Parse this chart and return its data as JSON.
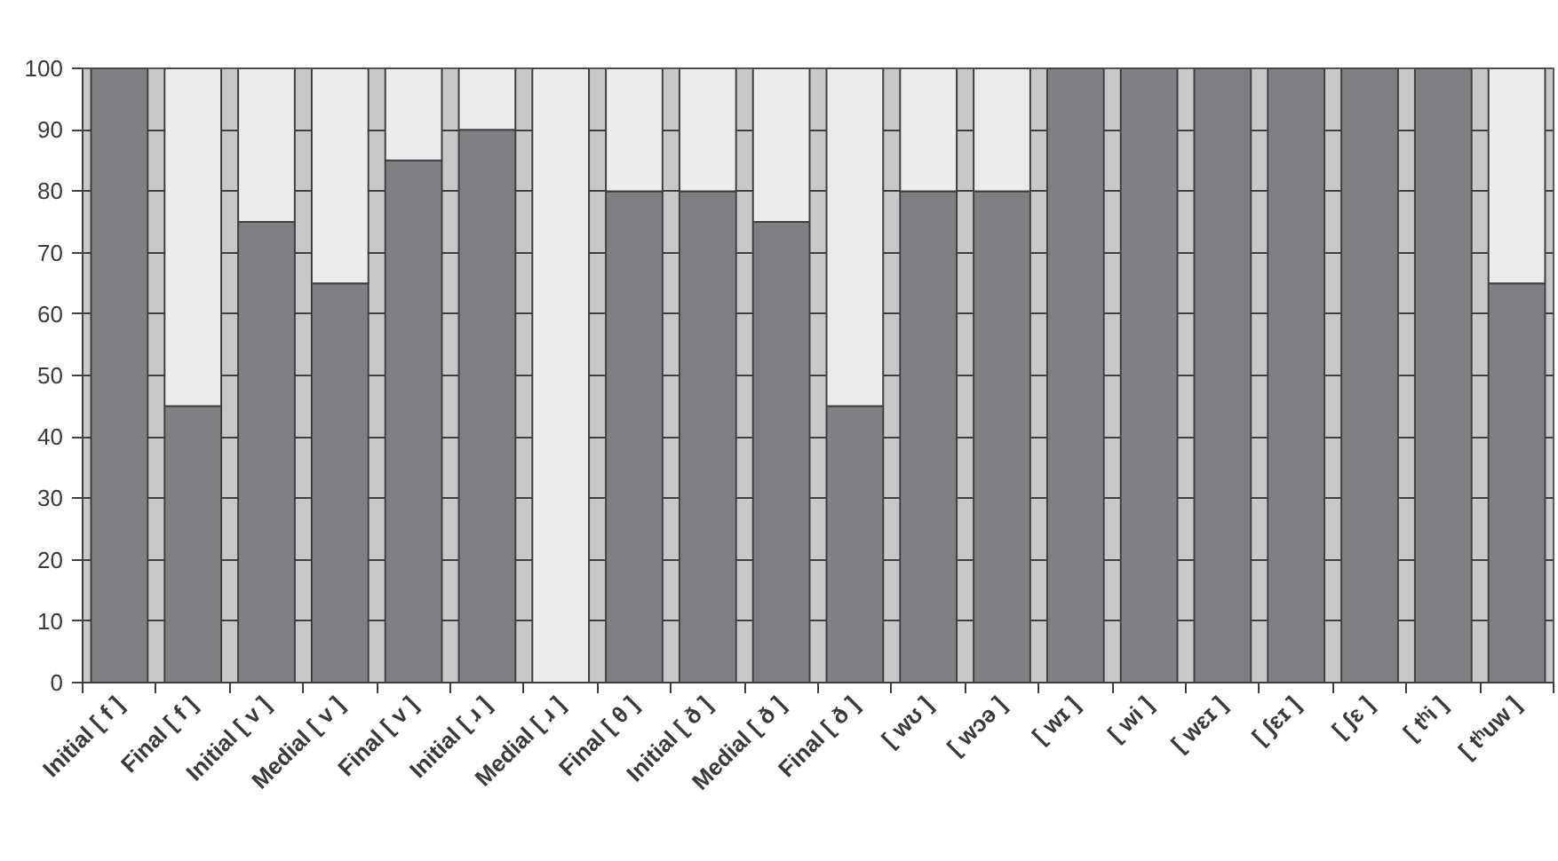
{
  "chart_data": {
    "type": "bar",
    "stacked": true,
    "categories": [
      "Initial [ f ]",
      "Final [ f ]",
      "Initial [ v ]",
      "Medial [ v ]",
      "Final [ v ]",
      "Initial [ ɹ ]",
      "Medial [ ɹ ]",
      "Final [ θ ]",
      "Initial [ ð ]",
      "Medial [ ð ]",
      "Final [ ð ]",
      "[ wʊ ]",
      "[ wɔə ]",
      "[ wɪ ]",
      "[ wi ]",
      "[ wɛɪ ]",
      "[ ʃɛɪ ]",
      "[ ʃɛ ]",
      "[ tʰi ]",
      "[ tʰuw ]"
    ],
    "series": [
      {
        "color": "#808084",
        "values": [
          100,
          45,
          75,
          65,
          85,
          90,
          0,
          80,
          80,
          75,
          45,
          80,
          80,
          100,
          100,
          100,
          100,
          100,
          100,
          65
        ]
      },
      {
        "color": "#ececec",
        "values": [
          0,
          55,
          25,
          35,
          15,
          10,
          100,
          20,
          20,
          25,
          55,
          20,
          20,
          0,
          0,
          0,
          0,
          0,
          0,
          35
        ]
      }
    ],
    "ylim": [
      0,
      100
    ],
    "yticks": [
      0,
      10,
      20,
      30,
      40,
      50,
      60,
      70,
      80,
      90,
      100
    ],
    "grid": "y"
  }
}
